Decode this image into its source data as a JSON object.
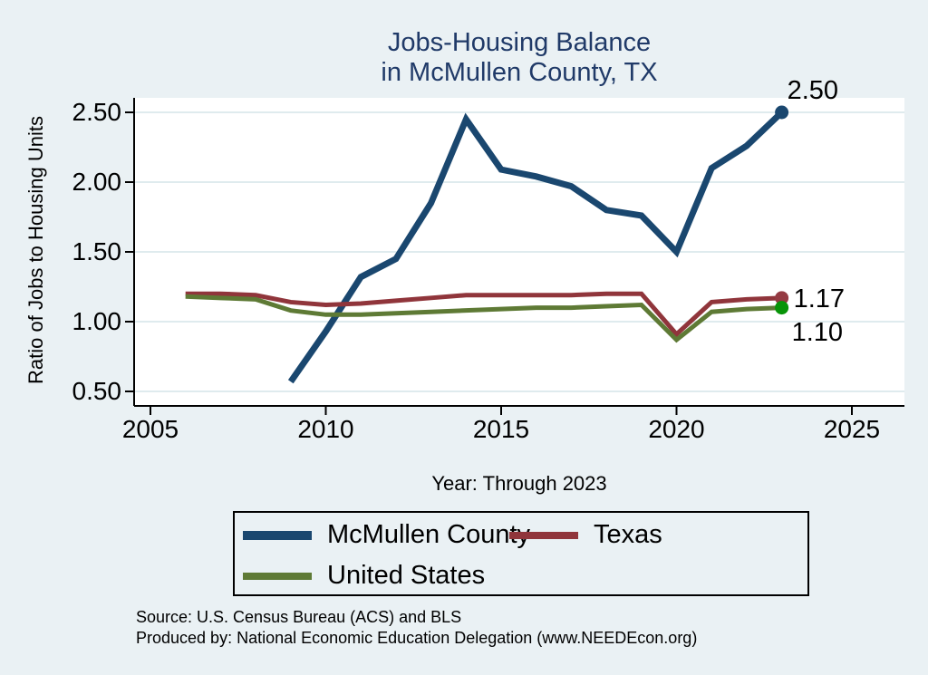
{
  "title": {
    "line1": "Jobs-Housing Balance",
    "line2": "in McMullen County, TX"
  },
  "colors": {
    "page_bg": "#eaf1f4",
    "plot_bg": "#ffffff",
    "grid": "#dfebee",
    "axis": "#000000",
    "title_text": "#203a68",
    "mcmullen_line": "#1a476f",
    "texas_line": "#90353b",
    "us_line": "#5e7a35",
    "us_end_dot": "#089408",
    "texas_end_dot": "#943a42",
    "mcmullen_end_dot": "#1a476f"
  },
  "legend": {
    "items": [
      {
        "label": "McMullen County"
      },
      {
        "label": "Texas"
      },
      {
        "label": "United States"
      }
    ]
  },
  "footnotes": {
    "line1": "Source: U.S. Census Bureau (ACS) and BLS",
    "line2": "Produced by: National Economic Education Delegation (www.NEEDEcon.org)"
  },
  "chart_data": {
    "type": "line",
    "title": "Jobs-Housing Balance in McMullen County, TX",
    "xlabel": "Year: Through 2023",
    "ylabel": "Ratio of Jobs to Housing Units",
    "xlim": [
      2004.5,
      2026.5
    ],
    "ylim": [
      0.4,
      2.6
    ],
    "grid": true,
    "legend_position": "bottom",
    "xticks": {
      "values": [
        2005,
        2010,
        2015,
        2020,
        2025
      ],
      "labels": [
        "2005",
        "2010",
        "2015",
        "2020",
        "2025"
      ]
    },
    "yticks": {
      "values": [
        0.5,
        1.0,
        1.5,
        2.0,
        2.5
      ],
      "labels": [
        "0.50",
        "1.00",
        "1.50",
        "2.00",
        "2.50"
      ]
    },
    "series": [
      {
        "name": "McMullen County",
        "color": "#1a476f",
        "line_width": 7,
        "x": [
          2009,
          2010,
          2011,
          2012,
          2013,
          2014,
          2015,
          2016,
          2017,
          2018,
          2019,
          2020,
          2021,
          2022,
          2023
        ],
        "values": [
          0.57,
          0.93,
          1.32,
          1.45,
          1.85,
          2.45,
          2.09,
          2.04,
          1.97,
          1.8,
          1.76,
          1.5,
          2.1,
          2.26,
          2.5
        ],
        "end_label": "2.50",
        "end_dot_color": "#1a476f"
      },
      {
        "name": "Texas",
        "color": "#90353b",
        "line_width": 5,
        "x": [
          2006,
          2007,
          2008,
          2009,
          2010,
          2011,
          2012,
          2013,
          2014,
          2015,
          2016,
          2017,
          2018,
          2019,
          2020,
          2021,
          2022,
          2023
        ],
        "values": [
          1.2,
          1.2,
          1.19,
          1.14,
          1.12,
          1.13,
          1.15,
          1.17,
          1.19,
          1.19,
          1.19,
          1.19,
          1.2,
          1.2,
          0.91,
          1.14,
          1.16,
          1.17
        ],
        "end_label": "1.17",
        "end_dot_color": "#943a42"
      },
      {
        "name": "United States",
        "color": "#5e7a35",
        "line_width": 5,
        "x": [
          2006,
          2007,
          2008,
          2009,
          2010,
          2011,
          2012,
          2013,
          2014,
          2015,
          2016,
          2017,
          2018,
          2019,
          2020,
          2021,
          2022,
          2023
        ],
        "values": [
          1.18,
          1.17,
          1.16,
          1.08,
          1.05,
          1.05,
          1.06,
          1.07,
          1.08,
          1.09,
          1.1,
          1.1,
          1.11,
          1.12,
          0.87,
          1.07,
          1.09,
          1.1
        ],
        "end_label": "1.10",
        "end_dot_color": "#089408"
      }
    ]
  }
}
